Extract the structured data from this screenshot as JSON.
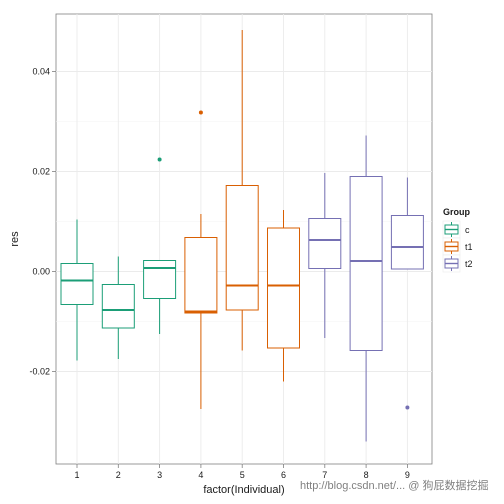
{
  "chart_data": {
    "type": "boxplot",
    "xlabel": "factor(Individual)",
    "ylabel": "res",
    "ylim": [
      -0.0385,
      0.0515
    ],
    "yticks": [
      -0.02,
      0.0,
      0.02,
      0.04
    ],
    "ytick_labels": [
      "-0.02",
      "0.00",
      "0.02",
      "0.04"
    ],
    "categories": [
      "1",
      "2",
      "3",
      "4",
      "5",
      "6",
      "7",
      "8",
      "9"
    ],
    "grid": true,
    "legend": {
      "title": "Group",
      "placement": "right",
      "entries": [
        {
          "label": "c",
          "color": "#1b9e77"
        },
        {
          "label": "t1",
          "color": "#d95f02"
        },
        {
          "label": "t2",
          "color": "#7570b3"
        }
      ]
    },
    "boxes": [
      {
        "x": "1",
        "group": "c",
        "min": -0.0178,
        "q1": -0.0066,
        "median": -0.0018,
        "q3": 0.0016,
        "max": 0.0104,
        "outliers": []
      },
      {
        "x": "2",
        "group": "c",
        "min": -0.0175,
        "q1": -0.0113,
        "median": -0.0077,
        "q3": -0.0026,
        "max": 0.003,
        "outliers": []
      },
      {
        "x": "3",
        "group": "c",
        "min": -0.0125,
        "q1": -0.0054,
        "median": 0.0007,
        "q3": 0.0022,
        "max": 0.0022,
        "outliers": [
          0.0224
        ]
      },
      {
        "x": "4",
        "group": "t1",
        "min": -0.0275,
        "q1": -0.0083,
        "median": -0.008,
        "q3": 0.0068,
        "max": 0.0115,
        "outliers": [
          0.0318
        ]
      },
      {
        "x": "5",
        "group": "t1",
        "min": -0.0158,
        "q1": -0.0077,
        "median": -0.0028,
        "q3": 0.0172,
        "max": 0.0483,
        "outliers": []
      },
      {
        "x": "6",
        "group": "t1",
        "min": -0.022,
        "q1": -0.0153,
        "median": -0.0028,
        "q3": 0.0087,
        "max": 0.0123,
        "outliers": []
      },
      {
        "x": "7",
        "group": "t2",
        "min": -0.0133,
        "q1": 0.0006,
        "median": 0.0063,
        "q3": 0.0106,
        "max": 0.0197,
        "outliers": []
      },
      {
        "x": "8",
        "group": "t2",
        "min": -0.034,
        "q1": -0.0158,
        "median": 0.0021,
        "q3": 0.019,
        "max": 0.0272,
        "outliers": []
      },
      {
        "x": "9",
        "group": "t2",
        "min": 0.0005,
        "q1": 0.0005,
        "median": 0.0049,
        "q3": 0.0112,
        "max": 0.0188,
        "outliers": [
          -0.0272
        ]
      }
    ]
  },
  "watermark": {
    "text": "http://blog.csdn.net/...  @ 狗屁数据挖掘",
    "color": "#555555"
  }
}
